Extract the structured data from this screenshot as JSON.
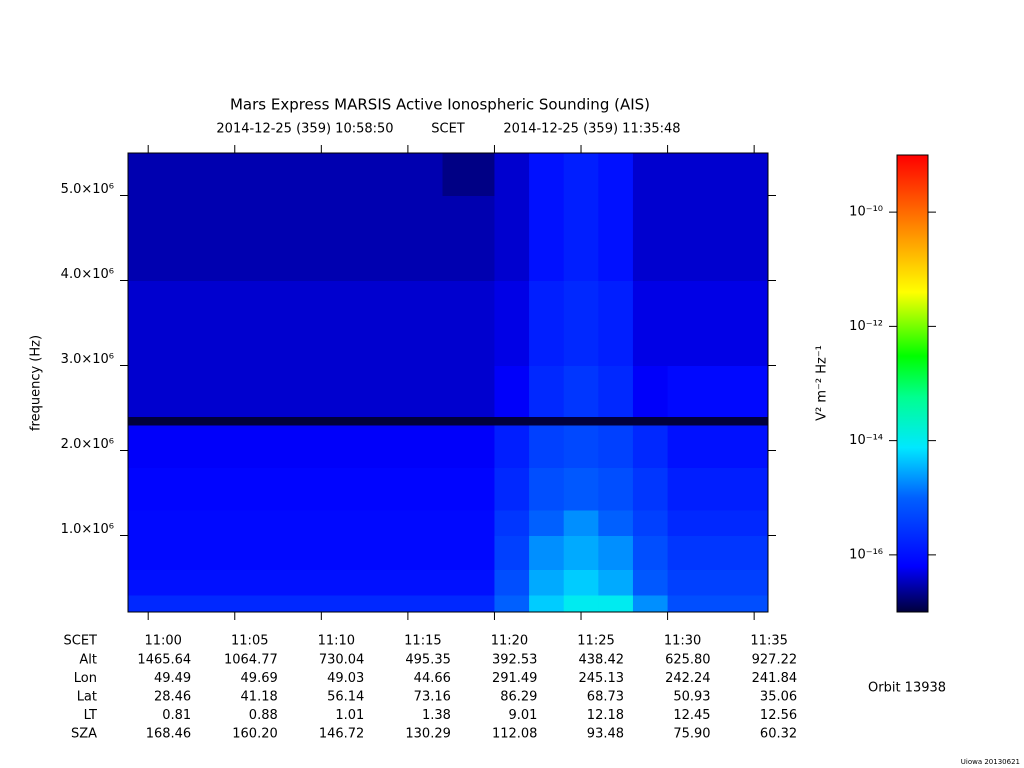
{
  "chart_data": {
    "type": "spectrogram",
    "title": "Mars Express MARSIS Active Ionospheric Sounding (AIS)",
    "start_label": "2014-12-25 (359) 10:58:50",
    "time_system": "SCET",
    "end_label": "2014-12-25 (359) 11:35:48",
    "ylabel": "frequency (Hz)",
    "colorbar_label": "V² m⁻² Hz⁻¹",
    "orbit": "Orbit 13938",
    "footer": "Uiowa 20130621",
    "xlim": [
      "10:58:50",
      "11:35:48"
    ],
    "xticks": [
      "11:00",
      "11:05",
      "11:10",
      "11:15",
      "11:20",
      "11:25",
      "11:30",
      "11:35"
    ],
    "ylim": [
      100000,
      5500000
    ],
    "yticks": [
      {
        "value": 1000000,
        "label": "1.0×10⁶"
      },
      {
        "value": 2000000,
        "label": "2.0×10⁶"
      },
      {
        "value": 3000000,
        "label": "3.0×10⁶"
      },
      {
        "value": 4000000,
        "label": "4.0×10⁶"
      },
      {
        "value": 5000000,
        "label": "5.0×10⁶"
      }
    ],
    "clim": [
      1e-17,
      1e-09
    ],
    "cscale": "log",
    "cticks": [
      {
        "value": 1e-10,
        "label": "10⁻¹⁰"
      },
      {
        "value": 1e-12,
        "label": "10⁻¹²"
      },
      {
        "value": 1e-14,
        "label": "10⁻¹⁴"
      },
      {
        "value": 1e-16,
        "label": "10⁻¹⁶"
      }
    ],
    "colormap": [
      [
        0,
        "#00003c"
      ],
      [
        0.1,
        "#0000ff"
      ],
      [
        0.25,
        "#0060ff"
      ],
      [
        0.36,
        "#00e8ff"
      ],
      [
        0.47,
        "#00ff90"
      ],
      [
        0.56,
        "#00ff00"
      ],
      [
        0.7,
        "#ffff00"
      ],
      [
        0.85,
        "#ff8000"
      ],
      [
        1,
        "#ff0000"
      ]
    ],
    "time_bins": [
      "10:58:50",
      "11:02",
      "11:05",
      "11:08",
      "11:11",
      "11:14",
      "11:17",
      "11:20",
      "11:22",
      "11:24",
      "11:26",
      "11:28",
      "11:30",
      "11:35:48"
    ],
    "freq_bins": [
      100000,
      300000,
      600000,
      1000000,
      1300000,
      1800000,
      2300000,
      2400000,
      3000000,
      4000000,
      5000000,
      5500000
    ],
    "z": [
      [
        2e-16,
        2e-16,
        2e-16,
        2e-16,
        2e-16,
        2e-16,
        2e-16,
        1e-15,
        5e-15,
        1e-14,
        1e-14,
        2e-15,
        6e-16
      ],
      [
        1e-16,
        1e-16,
        1e-16,
        1e-16,
        1e-16,
        1e-16,
        1e-16,
        6e-16,
        3e-15,
        5e-15,
        3e-15,
        8e-16,
        4e-16
      ],
      [
        8e-17,
        8e-17,
        8e-17,
        8e-17,
        8e-17,
        8e-17,
        8e-17,
        4e-16,
        2e-15,
        3e-15,
        2e-15,
        6e-16,
        3e-16
      ],
      [
        8e-17,
        8e-17,
        8e-17,
        8e-17,
        8e-17,
        8e-17,
        8e-17,
        3e-16,
        1e-15,
        2e-15,
        1e-15,
        4e-16,
        2e-16
      ],
      [
        7e-17,
        7e-17,
        7e-17,
        7e-17,
        7e-17,
        7e-17,
        7e-17,
        2e-16,
        6e-16,
        8e-16,
        6e-16,
        3e-16,
        1.5e-16
      ],
      [
        6e-17,
        6e-17,
        6e-17,
        6e-17,
        6e-17,
        6e-17,
        6e-17,
        1.5e-16,
        4e-16,
        5e-16,
        4e-16,
        2e-16,
        1e-16
      ],
      [
        1e-17,
        1e-17,
        1e-17,
        1e-17,
        1e-17,
        1e-17,
        1e-17,
        1e-17,
        1e-17,
        1e-17,
        1e-17,
        1e-17,
        1e-17
      ],
      [
        4e-17,
        4e-17,
        4e-17,
        4e-17,
        4e-17,
        4e-17,
        4e-17,
        6e-17,
        2e-16,
        3e-16,
        2e-16,
        6e-17,
        8e-17
      ],
      [
        4e-17,
        4e-17,
        4e-17,
        4e-17,
        4e-17,
        4e-17,
        4e-17,
        5e-17,
        1.5e-16,
        2e-16,
        1.5e-16,
        5e-17,
        5e-17
      ],
      [
        3e-17,
        3e-17,
        3e-17,
        3e-17,
        3e-17,
        3e-17,
        3e-17,
        4e-17,
        1e-16,
        1.5e-16,
        1e-16,
        4e-17,
        4e-17
      ],
      [
        3e-17,
        3e-17,
        3e-17,
        3e-17,
        3e-17,
        3e-17,
        2e-17,
        4e-17,
        1e-16,
        1.5e-16,
        1e-16,
        4e-17,
        4e-17
      ]
    ],
    "ephemeris": [
      {
        "name": "Alt",
        "values": [
          "1465.64",
          "1064.77",
          "730.04",
          "495.35",
          "392.53",
          "438.42",
          "625.80",
          "927.22"
        ]
      },
      {
        "name": "Lon",
        "values": [
          "49.49",
          "49.69",
          "49.03",
          "44.66",
          "291.49",
          "245.13",
          "242.24",
          "241.84"
        ]
      },
      {
        "name": "Lat",
        "values": [
          "28.46",
          "41.18",
          "56.14",
          "73.16",
          "86.29",
          "68.73",
          "50.93",
          "35.06"
        ]
      },
      {
        "name": "LT",
        "values": [
          "0.81",
          "0.88",
          "1.01",
          "1.38",
          "9.01",
          "12.18",
          "12.45",
          "12.56"
        ]
      },
      {
        "name": "SZA",
        "values": [
          "168.46",
          "160.20",
          "146.72",
          "130.29",
          "112.08",
          "93.48",
          "75.90",
          "60.32"
        ]
      }
    ]
  }
}
